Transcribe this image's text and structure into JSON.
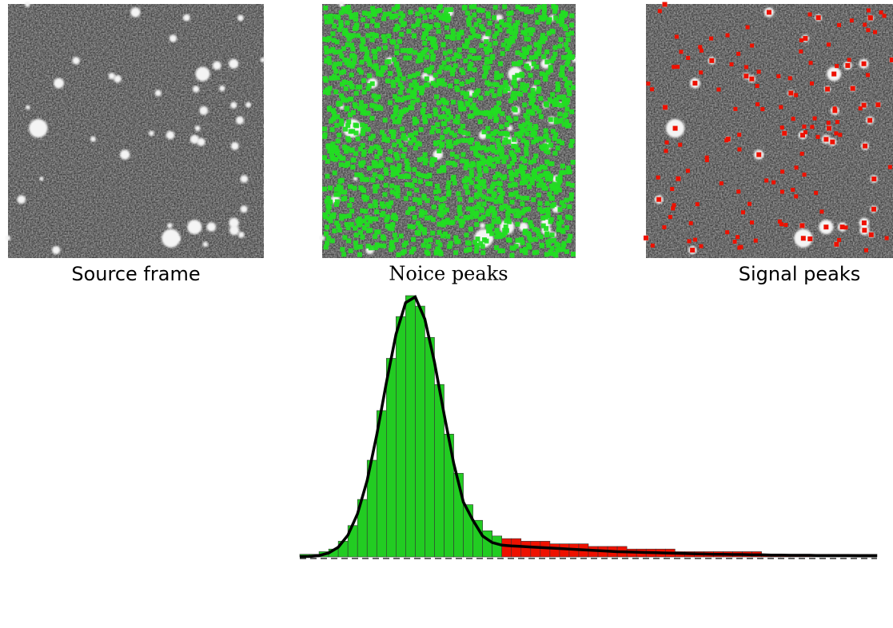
{
  "panels": [
    {
      "label": "Source frame"
    },
    {
      "label": "Noice peaks"
    },
    {
      "label": "Signal peaks"
    }
  ],
  "chart_data": {
    "type": "histogram",
    "bins": [
      0,
      1,
      2,
      3,
      4,
      5,
      6,
      7,
      8,
      9,
      10,
      11,
      12,
      13,
      14,
      15,
      16,
      17,
      18,
      19,
      20,
      21,
      22,
      23,
      24,
      25,
      26,
      27,
      28,
      29,
      30,
      31,
      32,
      33,
      34,
      35,
      36,
      37,
      38,
      39,
      40,
      41,
      42,
      43,
      44,
      45,
      46,
      47,
      48,
      49,
      50,
      51,
      52,
      53,
      54,
      55,
      56,
      57,
      58,
      59,
      60
    ],
    "xlim": [
      0,
      60
    ],
    "ylim": [
      0,
      100
    ],
    "series": [
      {
        "color": "#22cc22",
        "values": [
          1,
          1,
          2,
          3,
          6,
          12,
          22,
          37,
          56,
          76,
          92,
          100,
          96,
          84,
          66,
          47,
          32,
          20,
          14,
          10,
          8,
          null,
          null,
          null,
          null,
          null,
          null,
          null,
          null,
          null,
          null,
          null,
          null,
          null,
          null,
          null,
          null,
          null,
          null,
          null,
          null,
          null,
          null,
          null,
          null,
          null,
          null,
          null,
          null,
          null,
          null,
          null,
          null,
          null,
          null,
          null,
          null,
          null,
          null,
          null
        ]
      },
      {
        "color": "#ee1100",
        "values": [
          null,
          null,
          null,
          null,
          null,
          null,
          null,
          null,
          null,
          null,
          null,
          null,
          null,
          null,
          null,
          null,
          null,
          null,
          null,
          null,
          null,
          7,
          7,
          6,
          6,
          6,
          5,
          5,
          5,
          5,
          4,
          4,
          4,
          4,
          3,
          3,
          3,
          3,
          3,
          2,
          2,
          2,
          2,
          2,
          2,
          2,
          2,
          2,
          1,
          1,
          1,
          1,
          1,
          1,
          1,
          1,
          1,
          1,
          1,
          1
        ]
      }
    ],
    "fit": {
      "color": "#000000",
      "values": [
        0.1,
        0.17,
        0.5,
        1.5,
        3.7,
        8.3,
        16.5,
        29.2,
        46.7,
        66.7,
        85.2,
        97.3,
        99.5,
        91.0,
        74.5,
        54.6,
        35.8,
        21.0,
        14,
        8,
        5.5,
        4.5,
        4.2,
        4,
        3.8,
        3.6,
        3.4,
        3.2,
        3.0,
        2.8,
        2.6,
        2.4,
        2.2,
        2.0,
        1.9,
        1.8,
        1.7,
        1.6,
        1.5,
        1.4,
        1.3,
        1.2,
        1.1,
        1.0,
        1.0,
        0.9,
        0.9,
        0.8,
        0.8,
        0.7,
        0.7,
        0.6,
        0.6,
        0.6,
        0.5,
        0.5,
        0.5,
        0.5,
        0.4,
        0.4,
        0.4
      ]
    }
  }
}
